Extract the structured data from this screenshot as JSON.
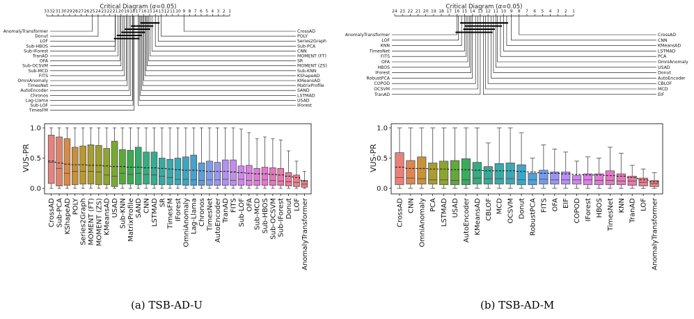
{
  "captions": [
    "(a) TSB-AD-U",
    "(b) TSB-AD-M"
  ],
  "chart_data": [
    {
      "type": "diagram",
      "panel": "a",
      "title_prefix": "Critical Diagram (",
      "title_alpha": "α",
      "title_suffix": "=0.05)",
      "axis_ticks": [
        "33",
        "32",
        "31",
        "30",
        "29",
        "28",
        "27",
        "26",
        "25",
        "24",
        "23",
        "22",
        "21",
        "20",
        "19",
        "18",
        "17",
        "16",
        "15",
        "14",
        "13",
        "12",
        "11",
        "10",
        "9",
        "8",
        "7",
        "6",
        "5",
        "4",
        "3",
        "2",
        "1"
      ],
      "axis_min": 1,
      "axis_max": 33,
      "left_labels": [
        "AnomalyTransformer",
        "Donut",
        "LOF",
        "Sub-HBOS",
        "Sub-IForest",
        "TranAD",
        "OFA",
        "Sub-OCSVM",
        "Sub-MCD",
        "FITS",
        "OmniAnomaly",
        "TimesNet",
        "AutoEncoder",
        "Chronos",
        "Lag-Llama",
        "Sub-LOF",
        "TimesFM"
      ],
      "left_ranks": [
        25.0,
        24.0,
        21.0,
        21.0,
        21.0,
        20.5,
        20.2,
        20.0,
        19.7,
        19.4,
        19.1,
        18.9,
        18.6,
        18.3,
        18.0,
        17.9,
        17.7
      ],
      "right_labels": [
        "CrossAD",
        "POLY",
        "Series2Graph",
        "Sub-PCA",
        "CNN",
        "MOMENT (FT)",
        "SR",
        "MOMENT (ZS)",
        "Sub-KNN",
        "KShapeAD",
        "KMeansAD",
        "MatrixProfile",
        "SAND",
        "LSTMAD",
        "USAD",
        "IForest"
      ],
      "right_ranks": [
        9.0,
        13.0,
        13.5,
        14.0,
        14.6,
        14.9,
        15.2,
        15.4,
        15.6,
        15.8,
        16.0,
        16.2,
        16.4,
        16.6,
        16.8,
        17.0
      ],
      "cliques": [
        [
          13.5,
          16.4
        ],
        [
          14.6,
          18.0
        ],
        [
          15.2,
          19.1
        ],
        [
          16.0,
          19.7
        ],
        [
          16.6,
          20.5
        ],
        [
          17.0,
          21.0
        ]
      ]
    },
    {
      "type": "box",
      "panel": "a",
      "ylabel": "VUS-PR",
      "ylim": [
        0,
        1
      ],
      "yticks": [
        "0.0",
        "0.5",
        "1.0"
      ],
      "categories": [
        "CrossAD",
        "Sub-PCA",
        "KShapeAD",
        "POLY",
        "Series2Graph",
        "MOMENT (FT)",
        "MOMENT (ZS)",
        "KMeansAD",
        "USAD",
        "Sub-KNN",
        "MatrixProfile",
        "SAND",
        "CNN",
        "LSTMAD",
        "SR",
        "TimesFM",
        "IForest",
        "OmniAnomaly",
        "Lag-Llama",
        "Chronos",
        "TimesNet",
        "AutoEncoder",
        "TranAD",
        "FITS",
        "Sub-LOF",
        "OFA",
        "Sub-MCD",
        "Sub-HBOS",
        "Sub-OCSVM",
        "Sub-IForest",
        "Donut",
        "LOF",
        "AnomalyTransformer"
      ],
      "colors": [
        "#e8817c",
        "#e0836a",
        "#d98a48",
        "#c88f3c",
        "#b99834",
        "#a99c33",
        "#9c9f34",
        "#8ea434",
        "#7aa836",
        "#5ca83e",
        "#3fa952",
        "#39ab6c",
        "#38ab80",
        "#38aa91",
        "#39a99f",
        "#3aa9ab",
        "#3ba8b6",
        "#3da6c2",
        "#44a2cf",
        "#5d9ede",
        "#7e9be9",
        "#9b97f0",
        "#b191f1",
        "#c28cf0",
        "#d086ee",
        "#dc7fe6",
        "#e27ada",
        "#e378cc",
        "#e478bd",
        "#e77aae",
        "#e87c9f",
        "#e97f90",
        "#e88184"
      ],
      "q1": [
        0.08,
        0.04,
        0.05,
        0.06,
        0.07,
        0.07,
        0.06,
        0.06,
        0.03,
        0.07,
        0.07,
        0.06,
        0.07,
        0.06,
        0.06,
        0.06,
        0.06,
        0.05,
        0.05,
        0.05,
        0.05,
        0.05,
        0.05,
        0.05,
        0.05,
        0.05,
        0.05,
        0.05,
        0.05,
        0.05,
        0.04,
        0.03,
        0.02
      ],
      "median": [
        0.43,
        0.33,
        0.25,
        0.28,
        0.28,
        0.28,
        0.27,
        0.22,
        0.2,
        0.25,
        0.23,
        0.25,
        0.23,
        0.22,
        0.2,
        0.18,
        0.15,
        0.15,
        0.14,
        0.13,
        0.14,
        0.14,
        0.15,
        0.13,
        0.15,
        0.13,
        0.13,
        0.14,
        0.13,
        0.12,
        0.11,
        0.1,
        0.07
      ],
      "q3": [
        0.88,
        0.85,
        0.82,
        0.68,
        0.7,
        0.72,
        0.71,
        0.66,
        0.78,
        0.64,
        0.63,
        0.68,
        0.6,
        0.6,
        0.5,
        0.48,
        0.5,
        0.52,
        0.55,
        0.42,
        0.45,
        0.43,
        0.47,
        0.47,
        0.37,
        0.38,
        0.33,
        0.35,
        0.34,
        0.33,
        0.26,
        0.22,
        0.13
      ],
      "mean": [
        0.45,
        0.42,
        0.4,
        0.39,
        0.39,
        0.38,
        0.38,
        0.37,
        0.36,
        0.36,
        0.35,
        0.35,
        0.34,
        0.34,
        0.33,
        0.32,
        0.31,
        0.3,
        0.3,
        0.29,
        0.28,
        0.28,
        0.28,
        0.27,
        0.26,
        0.25,
        0.24,
        0.24,
        0.23,
        0.22,
        0.2,
        0.18,
        0.12
      ],
      "whisker_hi": [
        1.0,
        1.0,
        1.0,
        1.0,
        1.0,
        1.0,
        1.0,
        1.0,
        1.0,
        1.0,
        1.0,
        1.0,
        1.0,
        1.0,
        1.0,
        1.0,
        1.0,
        1.0,
        1.0,
        1.0,
        1.0,
        1.0,
        1.0,
        1.0,
        0.98,
        0.92,
        0.82,
        0.85,
        0.82,
        0.8,
        0.62,
        0.45,
        0.28
      ]
    },
    {
      "type": "diagram",
      "panel": "b",
      "title_prefix": "Critical Diagram (",
      "title_alpha": "α",
      "title_suffix": "=0.05)",
      "axis_ticks": [
        "24",
        "23",
        "22",
        "21",
        "20",
        "19",
        "18",
        "17",
        "16",
        "15",
        "14",
        "13",
        "12",
        "11",
        "10",
        "9",
        "8",
        "7",
        "6",
        "5",
        "4",
        "3",
        "2",
        "1"
      ],
      "axis_min": 1,
      "axis_max": 24,
      "left_labels": [
        "AnomalyTransformer",
        "LOF",
        "KNN",
        "TimesNet",
        "FITS",
        "OFA",
        "HBOS",
        "IForest",
        "RobustPCA",
        "COPOD",
        "OCSVM",
        "TranAD"
      ],
      "left_ranks": [
        16.0,
        15.8,
        15.4,
        15.0,
        14.8,
        14.6,
        14.4,
        14.2,
        14.0,
        13.6,
        13.3,
        13.0
      ],
      "right_labels": [
        "CrossAD",
        "CNN",
        "KMeansAD",
        "LSTMAD",
        "PCA",
        "OmniAnomaly",
        "USAD",
        "Donut",
        "AutoEncoder",
        "CBLOF",
        "MCD",
        "EIF"
      ],
      "right_ranks": [
        8.0,
        9.0,
        9.6,
        10.0,
        10.4,
        10.8,
        11.0,
        11.3,
        11.6,
        12.0,
        12.3,
        12.6
      ],
      "cliques": [
        [
          9.6,
          15.4
        ],
        [
          10.4,
          14.8
        ],
        [
          11.3,
          15.0
        ],
        [
          11.6,
          16.0
        ]
      ]
    },
    {
      "type": "box",
      "panel": "b",
      "ylabel": "VUS-PR",
      "ylim": [
        0,
        1
      ],
      "yticks": [
        "0.0",
        "0.5",
        "1.0"
      ],
      "categories": [
        "CrossAD",
        "CNN",
        "OmniAnomaly",
        "PCA",
        "LSTMAD",
        "USAD",
        "AutoEncoder",
        "KMeansAD",
        "CBLOF",
        "MCD",
        "OCSVM",
        "Donut",
        "RobustPCA",
        "FITS",
        "OFA",
        "EIF",
        "COPOD",
        "IForest",
        "HBOS",
        "TimesNet",
        "KNN",
        "TranAD",
        "LOF",
        "AnomalyTransformer"
      ],
      "colors": [
        "#e8817c",
        "#df8650",
        "#c9913a",
        "#aa9c33",
        "#8ca434",
        "#63a83c",
        "#3caa5e",
        "#38ab7f",
        "#38aa94",
        "#3aa9a6",
        "#3ba8b6",
        "#3ea5c6",
        "#52a0d8",
        "#779be8",
        "#9a96f0",
        "#b690f2",
        "#cc88ef",
        "#db80e6",
        "#e27ada",
        "#e478c9",
        "#e579b6",
        "#e77ba4",
        "#e87e93",
        "#e88184"
      ],
      "q1": [
        0.06,
        0.07,
        0.07,
        0.07,
        0.06,
        0.06,
        0.06,
        0.07,
        0.07,
        0.07,
        0.07,
        0.06,
        0.06,
        0.07,
        0.07,
        0.07,
        0.07,
        0.06,
        0.06,
        0.06,
        0.06,
        0.05,
        0.04,
        0.03
      ],
      "median": [
        0.18,
        0.17,
        0.16,
        0.14,
        0.14,
        0.13,
        0.14,
        0.17,
        0.16,
        0.16,
        0.16,
        0.14,
        0.14,
        0.15,
        0.14,
        0.14,
        0.14,
        0.14,
        0.13,
        0.13,
        0.12,
        0.12,
        0.1,
        0.08
      ],
      "q3": [
        0.59,
        0.46,
        0.52,
        0.42,
        0.45,
        0.46,
        0.49,
        0.43,
        0.36,
        0.41,
        0.42,
        0.39,
        0.25,
        0.3,
        0.27,
        0.27,
        0.21,
        0.24,
        0.24,
        0.29,
        0.24,
        0.2,
        0.17,
        0.13
      ],
      "mean": [
        0.35,
        0.33,
        0.33,
        0.32,
        0.32,
        0.31,
        0.31,
        0.3,
        0.29,
        0.29,
        0.29,
        0.28,
        0.27,
        0.25,
        0.25,
        0.24,
        0.23,
        0.22,
        0.22,
        0.21,
        0.2,
        0.18,
        0.14,
        0.11
      ],
      "whisker_hi": [
        1.0,
        1.0,
        1.0,
        1.0,
        1.0,
        1.0,
        1.0,
        1.0,
        0.75,
        1.0,
        1.0,
        0.92,
        0.5,
        0.72,
        0.65,
        0.6,
        0.45,
        0.52,
        0.5,
        0.68,
        0.58,
        0.38,
        0.32,
        0.26
      ]
    }
  ]
}
